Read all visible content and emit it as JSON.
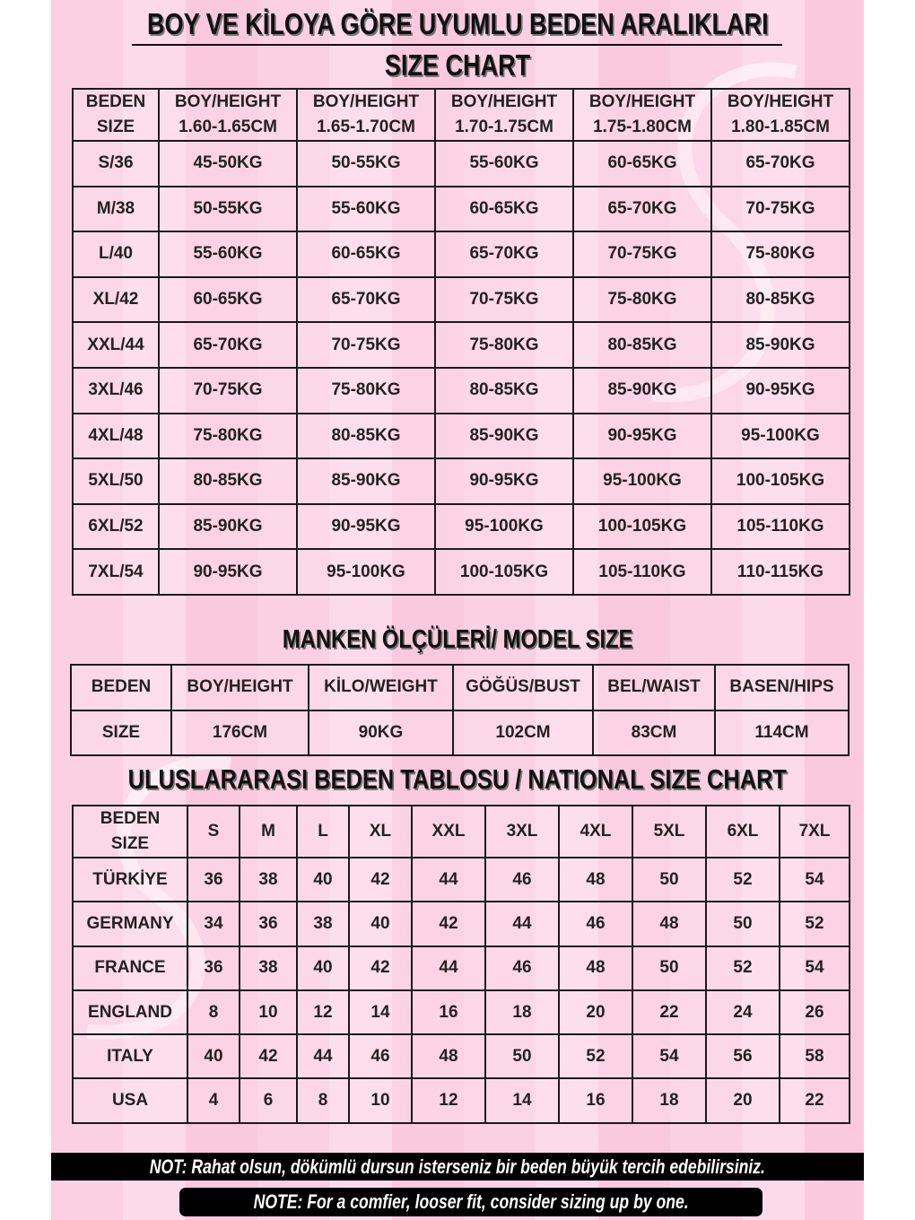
{
  "title": "BOY VE KİLOYA GÖRE UYUMLU BEDEN ARALIKLARI",
  "subtitle": "SIZE CHART",
  "size_chart": {
    "header": [
      [
        "BEDEN",
        "SIZE"
      ],
      [
        "BOY/HEIGHT",
        "1.60-1.65CM"
      ],
      [
        "BOY/HEIGHT",
        "1.65-1.70CM"
      ],
      [
        "BOY/HEIGHT",
        "1.70-1.75CM"
      ],
      [
        "BOY/HEIGHT",
        "1.75-1.80CM"
      ],
      [
        "BOY/HEIGHT",
        "1.80-1.85CM"
      ]
    ],
    "rows": [
      [
        "S/36",
        "45-50KG",
        "50-55KG",
        "55-60KG",
        "60-65KG",
        "65-70KG"
      ],
      [
        "M/38",
        "50-55KG",
        "55-60KG",
        "60-65KG",
        "65-70KG",
        "70-75KG"
      ],
      [
        "L/40",
        "55-60KG",
        "60-65KG",
        "65-70KG",
        "70-75KG",
        "75-80KG"
      ],
      [
        "XL/42",
        "60-65KG",
        "65-70KG",
        "70-75KG",
        "75-80KG",
        "80-85KG"
      ],
      [
        "XXL/44",
        "65-70KG",
        "70-75KG",
        "75-80KG",
        "80-85KG",
        "85-90KG"
      ],
      [
        "3XL/46",
        "70-75KG",
        "75-80KG",
        "80-85KG",
        "85-90KG",
        "90-95KG"
      ],
      [
        "4XL/48",
        "75-80KG",
        "80-85KG",
        "85-90KG",
        "90-95KG",
        "95-100KG"
      ],
      [
        "5XL/50",
        "80-85KG",
        "85-90KG",
        "90-95KG",
        "95-100KG",
        "100-105KG"
      ],
      [
        "6XL/52",
        "85-90KG",
        "90-95KG",
        "95-100KG",
        "100-105KG",
        "105-110KG"
      ],
      [
        "7XL/54",
        "90-95KG",
        "95-100KG",
        "100-105KG",
        "105-110KG",
        "110-115KG"
      ]
    ]
  },
  "model_title": "MANKEN  ÖLÇÜLERİ/ MODEL SIZE",
  "model_size": {
    "header": [
      "BEDEN",
      "BOY/HEIGHT",
      "KİLO/WEIGHT",
      "GÖĞÜS/BUST",
      "BEL/WAIST",
      "BASEN/HIPS"
    ],
    "rows": [
      [
        "SIZE",
        "176CM",
        "90KG",
        "102CM",
        "83CM",
        "114CM"
      ]
    ]
  },
  "national_title": "ULUSLARARASI BEDEN TABLOSU / NATIONAL SIZE CHART",
  "national_chart": {
    "header": [
      [
        "BEDEN",
        "SIZE"
      ],
      "S",
      "M",
      "L",
      "XL",
      "XXL",
      "3XL",
      "4XL",
      "5XL",
      "6XL",
      "7XL"
    ],
    "rows": [
      [
        "TÜRKİYE",
        "36",
        "38",
        "40",
        "42",
        "44",
        "46",
        "48",
        "50",
        "52",
        "54"
      ],
      [
        "GERMANY",
        "34",
        "36",
        "38",
        "40",
        "42",
        "44",
        "46",
        "48",
        "50",
        "52"
      ],
      [
        "FRANCE",
        "36",
        "38",
        "40",
        "42",
        "44",
        "46",
        "48",
        "50",
        "52",
        "54"
      ],
      [
        "ENGLAND",
        "8",
        "10",
        "12",
        "14",
        "16",
        "18",
        "20",
        "22",
        "24",
        "26"
      ],
      [
        "ITALY",
        "40",
        "42",
        "44",
        "46",
        "48",
        "50",
        "52",
        "54",
        "56",
        "58"
      ],
      [
        "USA",
        "4",
        "6",
        "8",
        "10",
        "12",
        "14",
        "16",
        "18",
        "20",
        "22"
      ]
    ]
  },
  "note_tr": "NOT: Rahat olsun, dökümlü dursun isterseniz bir beden büyük tercih edebilirsiniz.",
  "note_en": "NOTE: For a comfier, looser fit, consider sizing up by one.",
  "colors": {
    "background": "#fbd0e3",
    "border": "#1a1a1a",
    "note_bg": "#000000"
  }
}
